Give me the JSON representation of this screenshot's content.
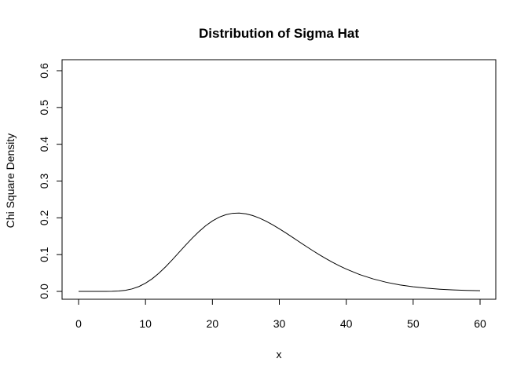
{
  "chart_data": {
    "type": "line",
    "title": "Distribution of Sigma Hat",
    "xlabel": "x",
    "ylabel": "Chi Square Density",
    "xlim": [
      0,
      60
    ],
    "ylim": [
      0,
      0.6
    ],
    "x_ticks": [
      "0",
      "10",
      "20",
      "30",
      "40",
      "50",
      "60"
    ],
    "y_ticks": [
      "0.0",
      "0.1",
      "0.2",
      "0.3",
      "0.4",
      "0.5",
      "0.6"
    ],
    "grid": false,
    "line_color": "#000000",
    "series": [
      {
        "x": [
          0,
          2,
          4,
          5,
          6,
          7,
          8,
          9,
          10,
          11,
          12,
          13,
          14,
          15,
          16,
          17,
          18,
          19,
          20,
          21,
          22,
          23,
          24,
          25,
          26,
          27,
          28,
          29,
          30,
          31,
          32,
          33,
          34,
          35,
          36,
          37,
          38,
          39,
          40,
          42,
          44,
          46,
          48,
          50,
          52,
          54,
          56,
          58,
          60
        ],
        "y": [
          0,
          0,
          0,
          0.0002,
          0.001,
          0.003,
          0.0068,
          0.0131,
          0.0222,
          0.0343,
          0.0493,
          0.0667,
          0.0858,
          0.1058,
          0.1258,
          0.1451,
          0.1628,
          0.1785,
          0.1915,
          0.2016,
          0.2085,
          0.2123,
          0.213,
          0.2109,
          0.2063,
          0.1995,
          0.191,
          0.1811,
          0.1702,
          0.1586,
          0.1466,
          0.1345,
          0.1225,
          0.1108,
          0.0995,
          0.0888,
          0.0787,
          0.0693,
          0.0607,
          0.0458,
          0.034,
          0.0247,
          0.0177,
          0.0125,
          0.0087,
          0.006,
          0.0041,
          0.0027,
          0.0018
        ]
      }
    ]
  }
}
